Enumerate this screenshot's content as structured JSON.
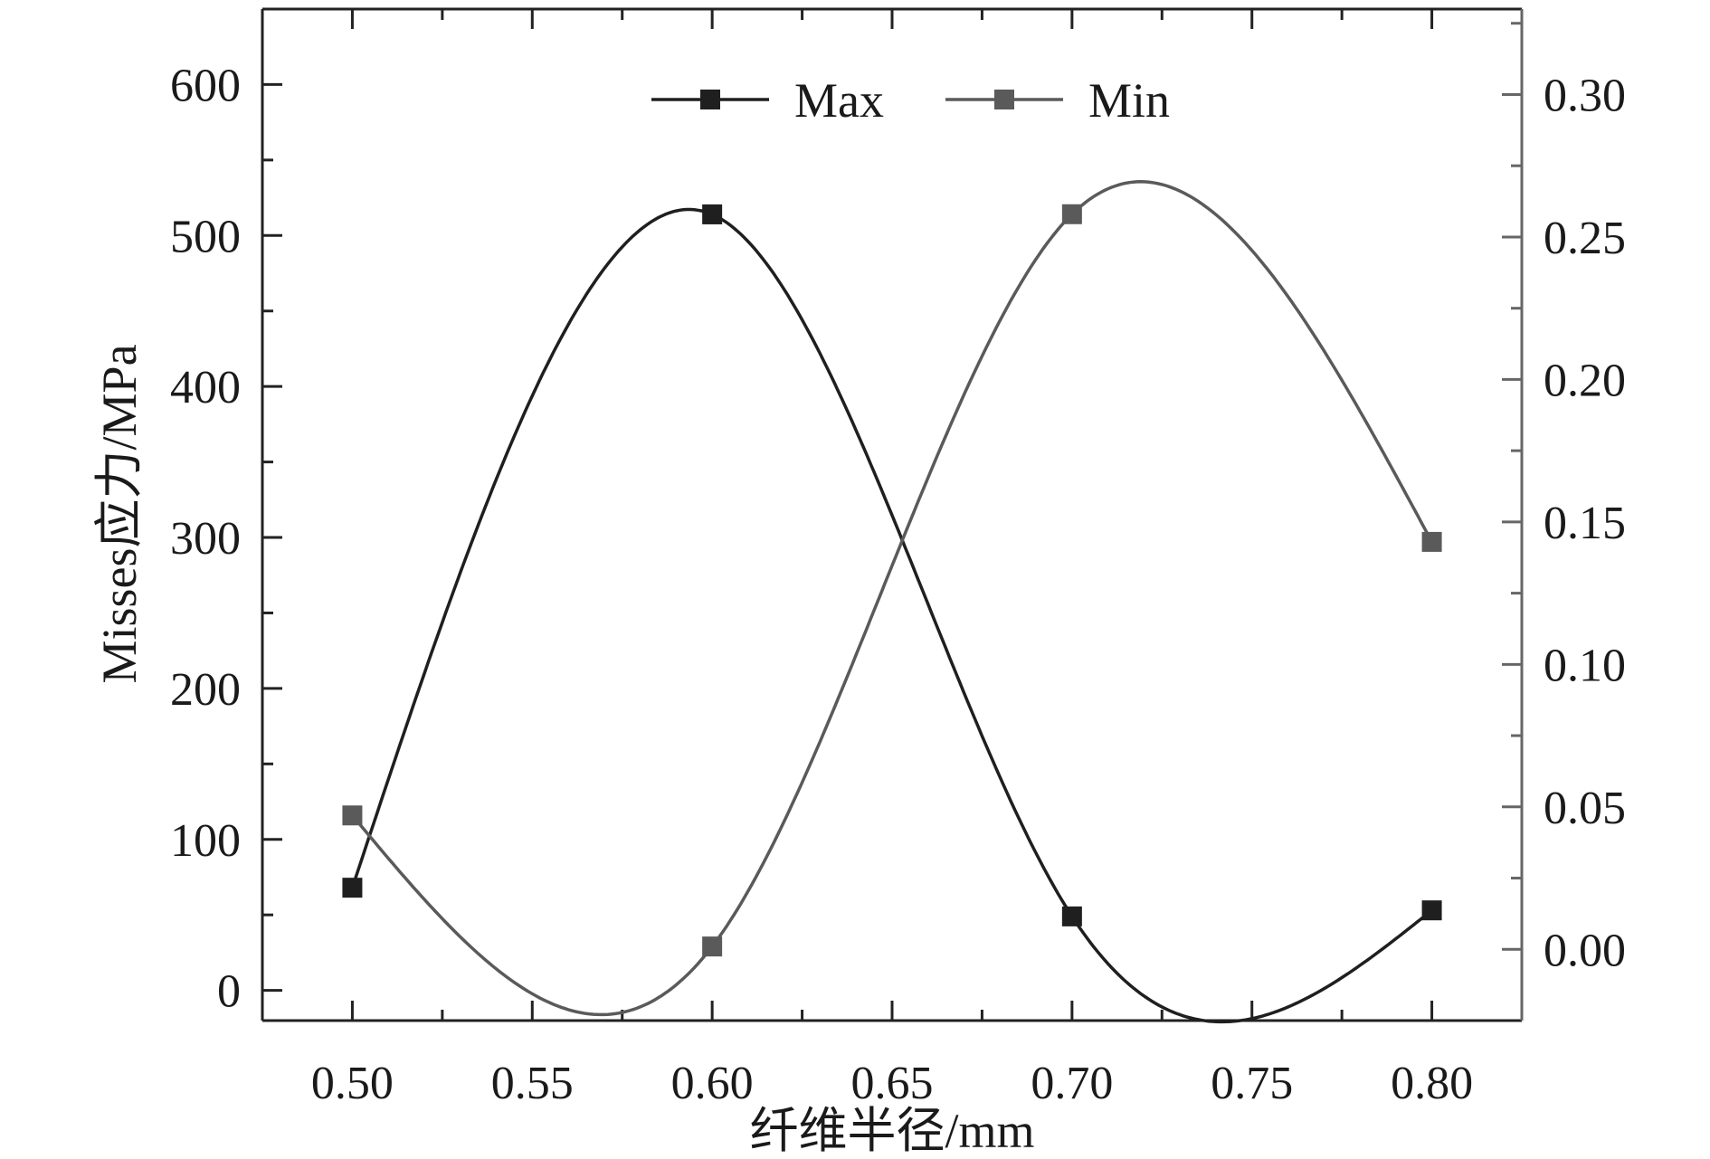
{
  "chart_data": {
    "type": "line",
    "smoothing": "spline",
    "xlabel": "纤维半径/mm",
    "ylabel": "Misses应力/MPa",
    "ylabel_right": "",
    "x": [
      0.5,
      0.6,
      0.7,
      0.8
    ],
    "xlim": [
      0.475,
      0.825
    ],
    "xticks": [
      "0.50",
      "0.55",
      "0.60",
      "0.65",
      "0.70",
      "0.75",
      "0.80"
    ],
    "ylim": [
      -20,
      650
    ],
    "yticks": [
      "0",
      "100",
      "200",
      "300",
      "400",
      "500",
      "600"
    ],
    "ylim_right": [
      -0.025,
      0.33
    ],
    "yticks_right": [
      "0.00",
      "0.05",
      "0.10",
      "0.15",
      "0.20",
      "0.25",
      "0.30"
    ],
    "series": [
      {
        "name": "Max",
        "axis": "left",
        "color": "#1f1f1f",
        "values": [
          68,
          514,
          49,
          53
        ]
      },
      {
        "name": "Min",
        "axis": "right",
        "color": "#5a5a5a",
        "values": [
          0.047,
          0.001,
          0.258,
          0.143
        ]
      }
    ],
    "legend_position": "top-center",
    "grid": false
  }
}
